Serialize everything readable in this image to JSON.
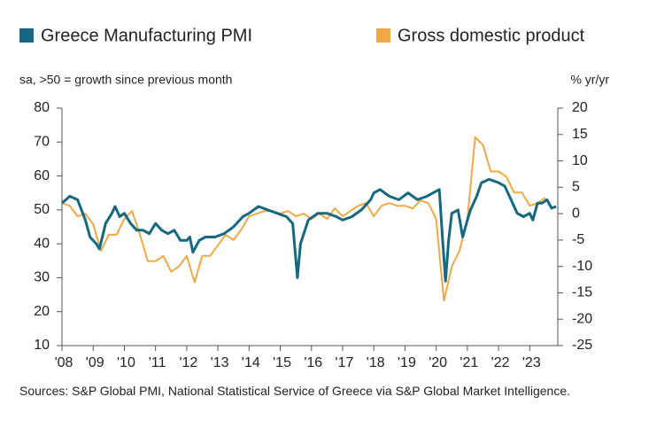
{
  "chart_data": {
    "type": "line",
    "subtitle": "sa, >50 = growth since previous month",
    "y2_label": "% yr/yr",
    "source": "Sources: S&P Global PMI, National Statistical Service of Greece via S&P Global Market Intelligence.",
    "xlim": [
      2008,
      2023.9
    ],
    "xticks": [
      {
        "value": 2008,
        "label": "'08"
      },
      {
        "value": 2009,
        "label": "'09"
      },
      {
        "value": 2010,
        "label": "'10"
      },
      {
        "value": 2011,
        "label": "'11"
      },
      {
        "value": 2012,
        "label": "'12"
      },
      {
        "value": 2013,
        "label": "'13"
      },
      {
        "value": 2014,
        "label": "'14"
      },
      {
        "value": 2015,
        "label": "'15"
      },
      {
        "value": 2016,
        "label": "'16"
      },
      {
        "value": 2017,
        "label": "'17"
      },
      {
        "value": 2018,
        "label": "'18"
      },
      {
        "value": 2019,
        "label": "'19"
      },
      {
        "value": 2020,
        "label": "'20"
      },
      {
        "value": 2021,
        "label": "'21"
      },
      {
        "value": 2022,
        "label": "'22"
      },
      {
        "value": 2023,
        "label": "'23"
      }
    ],
    "ylim": [
      10,
      80
    ],
    "yticks": [
      10,
      20,
      30,
      40,
      50,
      60,
      70,
      80
    ],
    "y2lim": [
      -25,
      20
    ],
    "y2ticks": [
      -25,
      -20,
      -15,
      -10,
      -5,
      0,
      5,
      10,
      15,
      20
    ],
    "series": [
      {
        "name": "Greece Manufacturing PMI",
        "color": "#15687f",
        "x": [
          2008.0,
          2008.25,
          2008.5,
          2008.75,
          2008.9,
          2009.1,
          2009.2,
          2009.4,
          2009.6,
          2009.7,
          2009.85,
          2010.0,
          2010.2,
          2010.4,
          2010.6,
          2010.8,
          2011.0,
          2011.2,
          2011.4,
          2011.6,
          2011.8,
          2012.0,
          2012.1,
          2012.2,
          2012.4,
          2012.6,
          2012.9,
          2013.2,
          2013.5,
          2013.8,
          2014.0,
          2014.3,
          2014.6,
          2014.9,
          2015.2,
          2015.4,
          2015.55,
          2015.65,
          2015.9,
          2016.2,
          2016.5,
          2016.8,
          2017.0,
          2017.3,
          2017.6,
          2017.9,
          2018.0,
          2018.2,
          2018.5,
          2018.8,
          2019.1,
          2019.4,
          2019.7,
          2019.9,
          2020.1,
          2020.2,
          2020.3,
          2020.4,
          2020.5,
          2020.7,
          2020.85,
          2021.0,
          2021.1,
          2021.3,
          2021.45,
          2021.7,
          2022.0,
          2022.2,
          2022.4,
          2022.6,
          2022.8,
          2023.0,
          2023.1,
          2023.25,
          2023.4,
          2023.55,
          2023.7,
          2023.85
        ],
        "values": [
          52,
          54,
          53,
          47,
          42,
          40,
          38.5,
          46,
          49,
          51,
          48,
          49,
          46,
          44,
          44,
          43,
          46,
          44,
          43,
          44,
          41,
          41,
          42,
          37.5,
          41,
          42,
          42,
          43,
          45,
          48,
          49,
          51,
          50,
          49,
          48,
          46,
          30,
          40,
          47,
          49,
          49,
          48,
          47,
          48,
          50,
          53,
          55,
          56,
          54,
          53,
          55,
          53,
          54,
          55,
          56,
          42,
          29,
          41,
          49,
          50,
          42,
          47,
          50,
          54,
          58,
          59,
          58,
          57,
          53,
          49,
          48,
          49,
          47,
          52,
          52,
          53,
          50.5,
          51
        ]
      },
      {
        "name": "Gross domestic product",
        "color": "#f0a847",
        "axis": "y2",
        "x": [
          2008.0,
          2008.25,
          2008.5,
          2008.75,
          2009.0,
          2009.25,
          2009.5,
          2009.75,
          2010.0,
          2010.25,
          2010.5,
          2010.75,
          2011.0,
          2011.25,
          2011.5,
          2011.75,
          2012.0,
          2012.25,
          2012.5,
          2012.75,
          2013.0,
          2013.25,
          2013.5,
          2013.75,
          2014.0,
          2014.25,
          2014.5,
          2014.75,
          2015.0,
          2015.25,
          2015.5,
          2015.75,
          2016.0,
          2016.25,
          2016.5,
          2016.75,
          2017.0,
          2017.25,
          2017.5,
          2017.75,
          2018.0,
          2018.25,
          2018.5,
          2018.75,
          2019.0,
          2019.25,
          2019.5,
          2019.75,
          2020.0,
          2020.25,
          2020.5,
          2020.75,
          2021.0,
          2021.25,
          2021.5,
          2021.75,
          2022.0,
          2022.25,
          2022.5,
          2022.75,
          2023.0,
          2023.25,
          2023.5
        ],
        "values": [
          2,
          1.5,
          -0.5,
          0,
          -2,
          -7,
          -4,
          -4,
          -1,
          0.5,
          -4,
          -9,
          -9,
          -8,
          -11,
          -10,
          -8,
          -13,
          -8,
          -8,
          -6,
          -4,
          -5,
          -3,
          -0.5,
          0,
          0.5,
          0.5,
          0,
          0.5,
          -0.5,
          0,
          -1,
          0,
          -1,
          1,
          -0.5,
          0.5,
          1.5,
          2,
          -0.5,
          1.5,
          2,
          1.5,
          1.5,
          1,
          2.5,
          2,
          -1,
          -16.5,
          -10,
          -7,
          -1,
          14.5,
          13,
          8,
          8,
          7,
          4,
          4,
          1.5,
          2,
          3
        ]
      }
    ]
  }
}
